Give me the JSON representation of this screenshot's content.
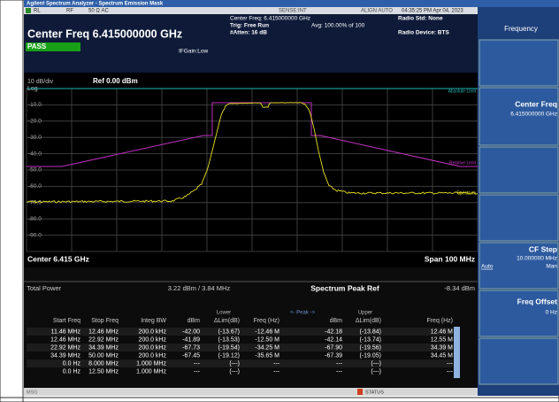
{
  "title_bar": "Agilent Spectrum Analyzer - Spectrum Emission Mask",
  "status_row": {
    "rl": "RL",
    "rf": "RF",
    "input": "50 Ω   AC",
    "sense": "SENSE:INT",
    "align": "ALIGN AUTO",
    "time": "04:35:25 PM Apr 04, 2023"
  },
  "header": {
    "center_freq": "Center Freq 6.415000000 GHz",
    "pass": "PASS",
    "if_gain": "IFGain:Low",
    "center_info": "Center Freq: 6.415000000 GHz",
    "trig": "Trig: Free Run",
    "atten": "#Atten: 16 dB",
    "avg": "Avg: 100.00% of 100",
    "radio_std": "Radio Std: None",
    "radio_device": "Radio Device: BTS"
  },
  "graph": {
    "scale": "10 dB/div",
    "log": "Log",
    "ref": "Ref 0.00 dBm",
    "y_labels": [
      "-10.0",
      "-20.0",
      "-30.0",
      "-40.0",
      "-50.0",
      "-60.0",
      "-70.0",
      "-80.0",
      "-90.0"
    ],
    "absolute_limit": "Absolute Limit",
    "relative_limit": "Relative Limit",
    "spectrum": "Spectrum",
    "center": "Center 6.415 GHz",
    "span": "Span 100 MHz"
  },
  "table": {
    "total_power_label": "Total Power",
    "total_power": "3.22 dBm / 3.84 MHz",
    "peak_ref_label": "Spectrum Peak Ref",
    "peak_ref": "-8.34 dBm",
    "group_labels": [
      "Lower",
      "<- Peak ->",
      "Upper"
    ],
    "columns": [
      "Start Freq",
      "Stop Freq",
      "Integ BW",
      "dBm",
      "ΔLim(dB)",
      "Freq (Hz)",
      "dBm",
      "ΔLim(dB)",
      "Freq (Hz)"
    ],
    "rows": [
      [
        "11.46 MHz",
        "12.46 MHz",
        "200.0 kHz",
        "-42.00",
        "(-13.67)",
        "-12.46 M",
        "-42.18",
        "(-13.84)",
        "12.46 M"
      ],
      [
        "12.46 MHz",
        "22.92 MHz",
        "200.0 kHz",
        "-41.89",
        "(-13.53)",
        "-12.50 M",
        "-42.14",
        "(-13.74)",
        "12.55 M"
      ],
      [
        "22.92 MHz",
        "34.39 MHz",
        "200.0 kHz",
        "-67.73",
        "(-19.54)",
        "-34.25 M",
        "-67.90",
        "(-19.56)",
        "34.39 M"
      ],
      [
        "34.39 MHz",
        "50.00 MHz",
        "200.0 kHz",
        "-67.45",
        "(-19.12)",
        "-35.65 M",
        "-67.39",
        "(-19.05)",
        "34.45 M"
      ],
      [
        "0.0 Hz",
        "8.000 MHz",
        "1.000 MHz",
        "---",
        "(---)",
        "---",
        "---",
        "(---)",
        "---"
      ],
      [
        "0.0 Hz",
        "12.50 MHz",
        "1.000 MHz",
        "---",
        "(---)",
        "---",
        "---",
        "(---)",
        "---"
      ]
    ]
  },
  "status_bar": {
    "msg": "MSG",
    "status": "STATUS"
  },
  "softkeys": {
    "title": "Frequency",
    "center_freq": {
      "label": "Center Freq",
      "value": "6.415000000 GHz"
    },
    "cf_step": {
      "label": "CF Step",
      "value": "10.000000 MHz",
      "auto": "Auto",
      "man": "Man"
    },
    "freq_offset": {
      "label": "Freq Offset",
      "value": "0 Hz"
    }
  }
}
